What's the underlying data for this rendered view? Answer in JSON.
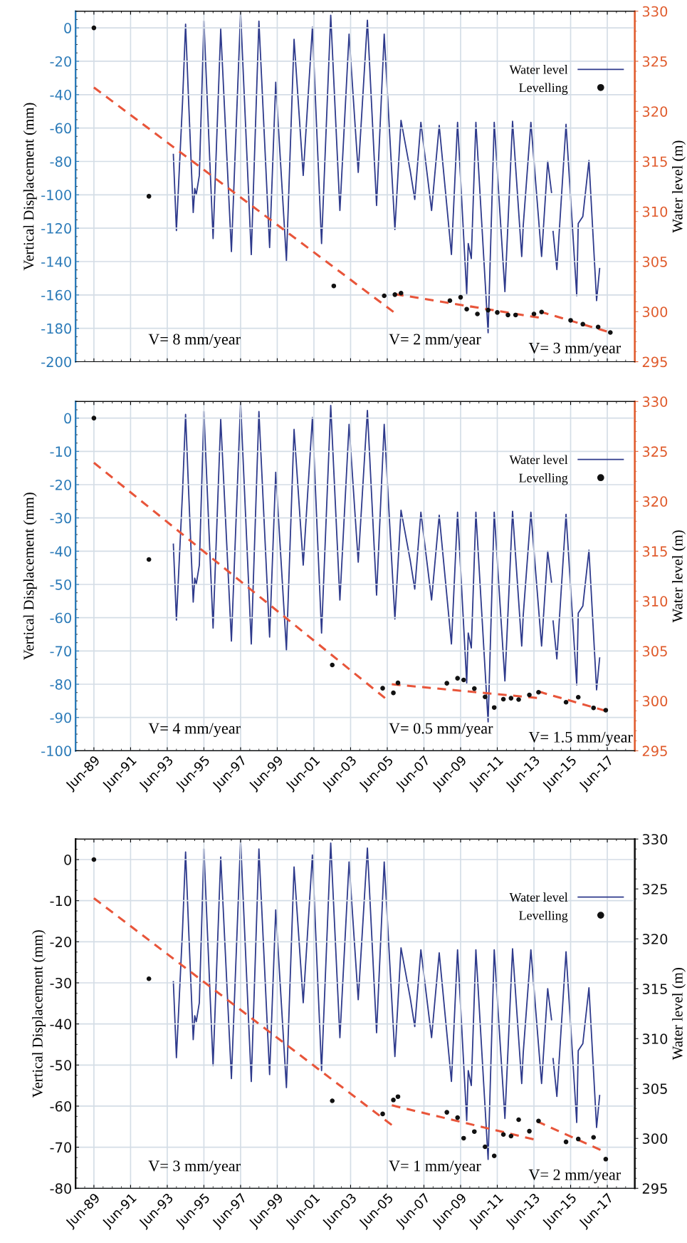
{
  "chart_data": [
    {
      "type": "line",
      "ylabel": "Vertical Displacement (mm)",
      "y2label": "Water level (m)",
      "xlim": [
        "1988-06",
        "2018-12"
      ],
      "tick_labels": "y",
      "xticks": [
        {
          "value": "1989-06",
          "label": null
        },
        {
          "value": "1991-06",
          "label": null
        },
        {
          "value": "1993-06",
          "label": null
        },
        {
          "value": "1995-06",
          "label": null
        },
        {
          "value": "1997-06",
          "label": null
        },
        {
          "value": "1999-06",
          "label": null
        },
        {
          "value": "2001-06",
          "label": null
        },
        {
          "value": "2003-06",
          "label": null
        },
        {
          "value": "2005-06",
          "label": null
        },
        {
          "value": "2007-06",
          "label": null
        },
        {
          "value": "2009-06",
          "label": null
        },
        {
          "value": "2011-06",
          "label": null
        },
        {
          "value": "2013-06",
          "label": null
        },
        {
          "value": "2015-06",
          "label": null
        },
        {
          "value": "2017-06",
          "label": null
        }
      ],
      "ylim": [
        -200,
        10
      ],
      "yticks": [
        -200,
        -180,
        -160,
        -140,
        -120,
        -100,
        -80,
        -60,
        -40,
        -20,
        0
      ],
      "y2lim": [
        295,
        330
      ],
      "y2ticks": [
        295,
        300,
        305,
        310,
        315,
        320,
        325,
        330
      ],
      "grid": true,
      "legend": "top right",
      "series": [
        {
          "type": "line",
          "name": "Water level",
          "color": "#2e3a8c",
          "axis": "y2",
          "x": [
            "1993-10",
            "1993-12",
            "1994-04",
            "1994-06",
            "1994-08",
            "1994-11",
            "1994-12",
            "1995-01",
            "1995-03",
            "1995-06",
            "1995-12",
            "1996-05",
            "1996-12",
            "1997-06",
            "1998-01",
            "1998-06",
            "1999-01",
            "1999-05",
            "1999-12",
            "2000-05",
            "2000-11",
            "2001-05",
            "2001-11",
            "2002-05",
            "2002-11",
            "2003-05",
            "2003-11",
            "2004-05",
            "2004-11",
            "2005-04",
            "2005-11",
            "2006-03",
            "2006-09",
            "2006-12",
            "2007-04",
            "2007-11",
            "2008-04",
            "2008-12",
            "2009-04",
            "2009-10",
            "2009-11",
            "2010-01",
            "2010-04",
            "2010-12",
            "2011-04",
            "2011-11",
            "2012-04",
            "2012-10",
            "2012-11",
            "2013-04",
            "2013-11",
            "2014-03",
            "2014-06-01",
            "2014-06-15",
            "2014-07-01",
            "2014-09",
            "2015-03",
            "2015-10",
            "2015-11",
            "2016-02",
            "2016-06",
            "2016-11",
            "2017-01"
          ],
          "values": [
            315.7,
            308.1,
            320.9,
            328.7,
            321.0,
            309.9,
            312.3,
            311.7,
            313.6,
            329.0,
            307.3,
            328.2,
            306.0,
            329.9,
            305.7,
            329.0,
            306.4,
            322.9,
            305.1,
            327.2,
            313.6,
            328.4,
            306.8,
            329.6,
            310.1,
            327.7,
            313.9,
            329.1,
            310.6,
            327.7,
            308.2,
            319.1,
            314.1,
            311.2,
            318.9,
            310.1,
            318.6,
            305.7,
            318.9,
            301.8,
            306.8,
            305.3,
            318.9,
            297.9,
            318.9,
            302.0,
            319.0,
            305.5,
            308.6,
            318.9,
            305.5,
            315.0,
            311.9,
            null,
            308.0,
            304.2,
            318.7,
            301.6,
            308.8,
            309.5,
            315.1,
            301.1,
            304.3
          ]
        },
        {
          "type": "line",
          "color": "#e8553a",
          "line_style": "dashed",
          "x": [
            "1989-06",
            "2005-11"
          ],
          "values": [
            -35.7,
            -170.8
          ]
        },
        {
          "type": "line",
          "color": "#e8553a",
          "line_style": "dashed",
          "x": [
            "2005-11",
            "2013-10"
          ],
          "values": [
            -159.5,
            -173.7
          ]
        },
        {
          "type": "line",
          "color": "#e8553a",
          "line_style": "dashed",
          "x": [
            "2013-10",
            "2017-08"
          ],
          "values": [
            -170.0,
            -182.5
          ]
        },
        {
          "type": "scatter",
          "name": "Levelling",
          "color": "#111111",
          "marker": "circle",
          "x": [
            "1989-06",
            "1992-06",
            "2002-07",
            "2005-04",
            "2005-11",
            "2006-03",
            "2008-11",
            "2009-06",
            "2009-10",
            "2010-05",
            "2010-12",
            "2011-06",
            "2012-01",
            "2012-06",
            "2013-06",
            "2013-11",
            "2015-06",
            "2016-02",
            "2016-12",
            "2017-08"
          ],
          "values": [
            0,
            -100.9,
            -154.6,
            -160.5,
            -159.8,
            -158.9,
            -163.4,
            -161.4,
            -168.5,
            -171.4,
            -169.1,
            -170.5,
            -172.0,
            -172.0,
            -171.4,
            -170.2,
            -175.2,
            -177.5,
            -179.2,
            -182.5
          ]
        }
      ],
      "annotations": [
        "V= 8 mm/year",
        "V= 2 mm/year",
        "V= 3 mm/year"
      ]
    },
    {
      "type": "line",
      "ylabel": "Vertical Displacement (mm)",
      "y2label": "Water level (m)",
      "xlim": [
        "1988-06",
        "2018-12"
      ],
      "xticks": [
        {
          "value": "1989-06",
          "label": "Jun-89"
        },
        {
          "value": "1991-06",
          "label": "Jun-91"
        },
        {
          "value": "1993-06",
          "label": "Jun-93"
        },
        {
          "value": "1995-06",
          "label": "Jun-95"
        },
        {
          "value": "1997-06",
          "label": "Jun-97"
        },
        {
          "value": "1999-06",
          "label": "Jun-99"
        },
        {
          "value": "2001-06",
          "label": "Jun-01"
        },
        {
          "value": "2003-06",
          "label": "Jun-03"
        },
        {
          "value": "2005-06",
          "label": "Jun-05"
        },
        {
          "value": "2007-06",
          "label": "Jun-07"
        },
        {
          "value": "2009-06",
          "label": "Jun-09"
        },
        {
          "value": "2011-06",
          "label": "Jun-11"
        },
        {
          "value": "2013-06",
          "label": "Jun-13"
        },
        {
          "value": "2015-06",
          "label": "Jun-15"
        },
        {
          "value": "2017-06",
          "label": "Jun-17"
        }
      ],
      "ylim": [
        -100,
        5
      ],
      "yticks": [
        -100,
        -90,
        -80,
        -70,
        -60,
        -50,
        -40,
        -30,
        -20,
        -10,
        0
      ],
      "y2lim": [
        295,
        330
      ],
      "y2ticks": [
        295,
        300,
        305,
        310,
        315,
        320,
        325,
        330
      ],
      "grid": true,
      "legend": "top right",
      "series": [
        {
          "type": "line",
          "name": "Water level",
          "color": "#2e3a8c",
          "axis": "y2",
          "x": [
            "1993-10",
            "1993-12",
            "1994-04",
            "1994-06",
            "1994-08",
            "1994-11",
            "1994-12",
            "1995-01",
            "1995-03",
            "1995-06",
            "1995-12",
            "1996-05",
            "1996-12",
            "1997-06",
            "1998-01",
            "1998-06",
            "1999-01",
            "1999-05",
            "1999-12",
            "2000-05",
            "2000-11",
            "2001-05",
            "2001-11",
            "2002-05",
            "2002-11",
            "2003-05",
            "2003-11",
            "2004-05",
            "2004-11",
            "2005-04",
            "2005-11",
            "2006-03",
            "2006-09",
            "2006-12",
            "2007-04",
            "2007-11",
            "2008-04",
            "2008-12",
            "2009-04",
            "2009-10",
            "2009-11",
            "2010-01",
            "2010-04",
            "2010-12",
            "2011-04",
            "2011-11",
            "2012-04",
            "2012-10",
            "2012-11",
            "2013-04",
            "2013-11",
            "2014-03",
            "2014-06-01",
            "2014-06-15",
            "2014-07-01",
            "2014-09",
            "2015-03",
            "2015-10",
            "2015-11",
            "2016-02",
            "2016-06",
            "2016-11",
            "2017-01"
          ],
          "values": [
            315.7,
            308.1,
            320.9,
            328.7,
            321.0,
            309.9,
            312.3,
            311.7,
            313.6,
            329.0,
            307.3,
            328.2,
            306.0,
            329.9,
            305.7,
            329.0,
            306.4,
            322.9,
            305.1,
            327.2,
            313.6,
            328.4,
            306.8,
            329.6,
            310.1,
            327.7,
            313.9,
            329.1,
            310.6,
            327.7,
            308.2,
            319.1,
            314.1,
            311.2,
            318.9,
            310.1,
            318.6,
            305.7,
            318.9,
            301.8,
            306.8,
            305.3,
            318.9,
            297.9,
            318.9,
            302.0,
            319.0,
            305.5,
            308.6,
            318.9,
            305.5,
            315.0,
            311.9,
            null,
            308.0,
            304.2,
            318.7,
            301.6,
            308.8,
            309.5,
            315.1,
            301.1,
            304.3
          ]
        },
        {
          "type": "line",
          "color": "#e8553a",
          "line_style": "dashed",
          "x": [
            "1989-06",
            "2005-06"
          ],
          "values": [
            -13.4,
            -84.7
          ]
        },
        {
          "type": "line",
          "color": "#e8553a",
          "line_style": "dashed",
          "x": [
            "2005-09",
            "2013-08"
          ],
          "values": [
            -80.0,
            -84.1
          ]
        },
        {
          "type": "line",
          "color": "#e8553a",
          "line_style": "dashed",
          "x": [
            "2013-09",
            "2017-05"
          ],
          "values": [
            -82.2,
            -88.0
          ]
        },
        {
          "type": "scatter",
          "name": "Levelling",
          "color": "#111111",
          "marker": "circle",
          "x": [
            "1989-06",
            "1992-06",
            "2002-06",
            "2005-03",
            "2005-10",
            "2006-01",
            "2008-09",
            "2009-04",
            "2009-08",
            "2010-03",
            "2010-10",
            "2011-04",
            "2011-10",
            "2012-03",
            "2012-08",
            "2013-03",
            "2013-09",
            "2015-03",
            "2015-11",
            "2016-09",
            "2017-05"
          ],
          "values": [
            0,
            -42.5,
            -74.2,
            -81.2,
            -82.6,
            -79.6,
            -79.7,
            -78.2,
            -78.7,
            -81.3,
            -83.8,
            -87.0,
            -84.5,
            -84.2,
            -84.6,
            -83.2,
            -82.4,
            -85.4,
            -83.9,
            -87.1,
            -87.8
          ]
        }
      ],
      "annotations": [
        "V= 4 mm/year",
        "V= 0.5 mm/year",
        "V= 1.5 mm/year"
      ]
    },
    {
      "type": "line",
      "ylabel": "Vertical Displacement (mm)",
      "y2label": "Water level (m)",
      "xlim": [
        "1988-06",
        "2018-12"
      ],
      "xticks": [
        {
          "value": "1989-06",
          "label": "Jun-89"
        },
        {
          "value": "1991-06",
          "label": "Jun-91"
        },
        {
          "value": "1993-06",
          "label": "Jun-93"
        },
        {
          "value": "1995-06",
          "label": "Jun-95"
        },
        {
          "value": "1997-06",
          "label": "Jun-97"
        },
        {
          "value": "1999-06",
          "label": "Jun-99"
        },
        {
          "value": "2001-06",
          "label": "Jun-01"
        },
        {
          "value": "2003-06",
          "label": "Jun-03"
        },
        {
          "value": "2005-06",
          "label": "Jun-05"
        },
        {
          "value": "2007-06",
          "label": "Jun-07"
        },
        {
          "value": "2009-06",
          "label": "Jun-09"
        },
        {
          "value": "2011-06",
          "label": "Jun-11"
        },
        {
          "value": "2013-06",
          "label": "Jun-13"
        },
        {
          "value": "2015-06",
          "label": "Jun-15"
        },
        {
          "value": "2017-06",
          "label": "Jun-17"
        }
      ],
      "ylim": [
        -80,
        5
      ],
      "yticks": [
        -80,
        -70,
        -60,
        -50,
        -40,
        -30,
        -20,
        -10,
        0
      ],
      "y2lim": [
        295,
        330
      ],
      "y2ticks": [
        295,
        300,
        305,
        310,
        315,
        320,
        325,
        330
      ],
      "grid": true,
      "legend": "top right",
      "series": [
        {
          "type": "line",
          "name": "Water level",
          "color": "#2e3a8c",
          "axis": "y2",
          "x": [
            "1993-10",
            "1993-12",
            "1994-04",
            "1994-06",
            "1994-08",
            "1994-11",
            "1994-12",
            "1995-01",
            "1995-03",
            "1995-06",
            "1995-12",
            "1996-05",
            "1996-12",
            "1997-06",
            "1998-01",
            "1998-06",
            "1999-01",
            "1999-05",
            "1999-12",
            "2000-05",
            "2000-11",
            "2001-05",
            "2001-11",
            "2002-05",
            "2002-11",
            "2003-05",
            "2003-11",
            "2004-05",
            "2004-11",
            "2005-04",
            "2005-11",
            "2006-03",
            "2006-09",
            "2006-12",
            "2007-04",
            "2007-11",
            "2008-04",
            "2008-12",
            "2009-04",
            "2009-10",
            "2009-11",
            "2010-01",
            "2010-04",
            "2010-12",
            "2011-04",
            "2011-11",
            "2012-04",
            "2012-10",
            "2012-11",
            "2013-04",
            "2013-11",
            "2014-03",
            "2014-06-01",
            "2014-06-15",
            "2014-07-01",
            "2014-09",
            "2015-03",
            "2015-10",
            "2015-11",
            "2016-02",
            "2016-06",
            "2016-11",
            "2017-01"
          ],
          "values": [
            315.7,
            308.1,
            320.9,
            328.7,
            321.0,
            309.9,
            312.3,
            311.7,
            313.6,
            329.0,
            307.3,
            328.2,
            306.0,
            329.9,
            305.7,
            329.0,
            306.4,
            322.9,
            305.1,
            327.2,
            313.6,
            328.4,
            306.8,
            329.6,
            310.1,
            327.7,
            313.9,
            329.1,
            310.6,
            327.7,
            308.2,
            319.1,
            314.1,
            311.2,
            318.9,
            310.1,
            318.6,
            305.7,
            318.9,
            301.8,
            306.8,
            305.3,
            318.9,
            297.9,
            318.9,
            302.0,
            319.0,
            305.5,
            308.6,
            318.9,
            305.5,
            315.0,
            311.9,
            null,
            308.0,
            304.2,
            318.7,
            301.6,
            308.8,
            309.5,
            315.1,
            301.1,
            304.3
          ]
        },
        {
          "type": "line",
          "color": "#e8553a",
          "line_style": "dashed",
          "x": [
            "1989-06",
            "2005-09"
          ],
          "values": [
            -9.4,
            -64.6
          ]
        },
        {
          "type": "line",
          "color": "#e8553a",
          "line_style": "dashed",
          "x": [
            "2005-09",
            "2013-07"
          ],
          "values": [
            -59.8,
            -68.2
          ]
        },
        {
          "type": "line",
          "color": "#e8553a",
          "line_style": "dashed",
          "x": [
            "2013-08",
            "2017-03"
          ],
          "values": [
            -63.7,
            -70.9
          ]
        },
        {
          "type": "scatter",
          "name": "Levelling",
          "color": "#111111",
          "marker": "circle",
          "x": [
            "1989-06",
            "1992-06",
            "2002-06",
            "2005-03",
            "2005-10",
            "2006-01",
            "2008-09",
            "2009-04",
            "2009-08",
            "2010-03",
            "2010-10",
            "2011-04",
            "2011-10",
            "2012-03",
            "2012-08",
            "2013-03",
            "2013-09",
            "2015-03",
            "2015-11",
            "2016-09",
            "2017-05"
          ],
          "values": [
            0,
            -29.0,
            -58.7,
            -61.9,
            -58.5,
            -57.7,
            -61.5,
            -62.8,
            -67.8,
            -66.2,
            -69.9,
            -72.1,
            -66.9,
            -67.3,
            -63.3,
            -66.1,
            -63.6,
            -68.7,
            -68.0,
            -67.6,
            -72.9
          ]
        }
      ],
      "annotations": [
        "V= 3 mm/year",
        "V= 1 mm/year",
        "V= 2 mm/year"
      ]
    }
  ]
}
